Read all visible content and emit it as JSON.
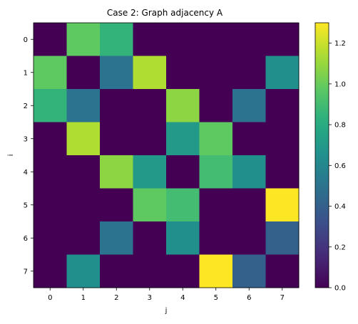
{
  "chart_data": {
    "type": "heatmap",
    "title": "Case 2: Graph adjacency A",
    "xlabel": "j",
    "ylabel": "i",
    "x_ticks": [
      "0",
      "1",
      "2",
      "3",
      "4",
      "5",
      "6",
      "7"
    ],
    "y_ticks": [
      "0",
      "1",
      "2",
      "3",
      "4",
      "5",
      "6",
      "7"
    ],
    "matrix": [
      [
        0.0,
        0.98,
        0.85,
        0.0,
        0.0,
        0.0,
        0.0,
        0.0
      ],
      [
        0.98,
        0.0,
        0.5,
        1.15,
        0.0,
        0.0,
        0.0,
        0.65
      ],
      [
        0.85,
        0.5,
        0.0,
        0.0,
        1.08,
        0.0,
        0.5,
        0.0
      ],
      [
        0.0,
        1.15,
        0.0,
        0.0,
        0.7,
        0.98,
        0.0,
        0.0
      ],
      [
        0.0,
        0.0,
        1.08,
        0.7,
        0.0,
        0.9,
        0.65,
        0.0
      ],
      [
        0.0,
        0.0,
        0.0,
        0.98,
        0.9,
        0.0,
        0.0,
        1.3
      ],
      [
        0.0,
        0.0,
        0.5,
        0.0,
        0.65,
        0.0,
        0.0,
        0.4
      ],
      [
        0.0,
        0.65,
        0.0,
        0.0,
        0.0,
        1.3,
        0.4,
        0.0
      ]
    ],
    "colormap": "viridis",
    "vmin": 0.0,
    "vmax": 1.3,
    "colorbar_ticks": [
      "0.0",
      "0.2",
      "0.4",
      "0.6",
      "0.8",
      "1.0",
      "1.2"
    ],
    "colorbar_tick_values": [
      0.0,
      0.2,
      0.4,
      0.6,
      0.8,
      1.0,
      1.2
    ],
    "grid": false
  }
}
